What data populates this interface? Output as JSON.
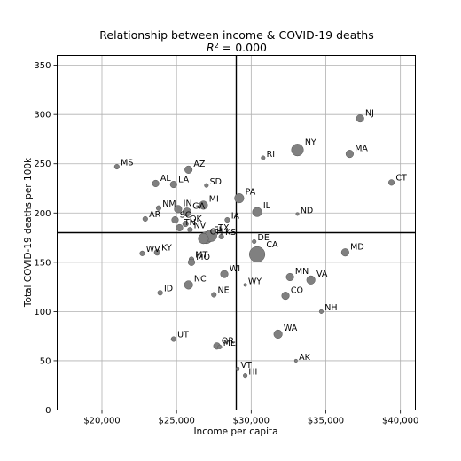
{
  "chart_data": {
    "type": "scatter",
    "title": "Relationship between income & COVID-19 deaths",
    "subtitle_math": "R",
    "subtitle_sup": "2",
    "subtitle_rest": " = 0.000",
    "xlabel": "Income per capita",
    "ylabel": "Total COVID-19 deaths per 100k",
    "xlim": [
      17000,
      41000
    ],
    "ylim": [
      0,
      360
    ],
    "x_ticks": [
      20000,
      25000,
      30000,
      35000,
      40000
    ],
    "x_tick_labels": [
      "$20,000",
      "$25,000",
      "$30,000",
      "$35,000",
      "$40,000"
    ],
    "y_ticks": [
      0,
      50,
      100,
      150,
      200,
      250,
      300,
      350
    ],
    "y_tick_labels": [
      "0",
      "50",
      "100",
      "150",
      "200",
      "250",
      "300",
      "350"
    ],
    "grid": true,
    "ref_x": 29000,
    "ref_y": 180,
    "marker_color": "#808080",
    "points": [
      {
        "label": "NJ",
        "x": 37300,
        "y": 296,
        "size": 7
      },
      {
        "label": "NY",
        "x": 33100,
        "y": 264,
        "size": 12
      },
      {
        "label": "MA",
        "x": 36600,
        "y": 260,
        "size": 7
      },
      {
        "label": "RI",
        "x": 30800,
        "y": 256,
        "size": 3
      },
      {
        "label": "MS",
        "x": 21000,
        "y": 247,
        "size": 4
      },
      {
        "label": "AZ",
        "x": 25800,
        "y": 244,
        "size": 7
      },
      {
        "label": "CT",
        "x": 39400,
        "y": 231,
        "size": 5
      },
      {
        "label": "AL",
        "x": 23600,
        "y": 230,
        "size": 6
      },
      {
        "label": "LA",
        "x": 24800,
        "y": 229,
        "size": 6
      },
      {
        "label": "SD",
        "x": 27000,
        "y": 228,
        "size": 3
      },
      {
        "label": "PA",
        "x": 29200,
        "y": 215,
        "size": 9
      },
      {
        "label": "MI",
        "x": 26800,
        "y": 208,
        "size": 8
      },
      {
        "label": "NM",
        "x": 23800,
        "y": 205,
        "size": 4
      },
      {
        "label": "IN",
        "x": 25100,
        "y": 204,
        "size": 7
      },
      {
        "label": "GA",
        "x": 25700,
        "y": 201,
        "size": 8
      },
      {
        "label": "IL",
        "x": 30400,
        "y": 201,
        "size": 9
      },
      {
        "label": "ND",
        "x": 33100,
        "y": 199,
        "size": 2
      },
      {
        "label": "AR",
        "x": 22900,
        "y": 194,
        "size": 4
      },
      {
        "label": "SC",
        "x": 24900,
        "y": 193,
        "size": 6
      },
      {
        "label": "IA",
        "x": 28400,
        "y": 193,
        "size": 4
      },
      {
        "label": "OK",
        "x": 25600,
        "y": 189,
        "size": 5
      },
      {
        "label": "TN",
        "x": 25200,
        "y": 185,
        "size": 6
      },
      {
        "label": "NV",
        "x": 25900,
        "y": 183,
        "size": 4
      },
      {
        "label": "FL",
        "x": 27000,
        "y": 175,
        "size": 12
      },
      {
        "label": "TX",
        "x": 27300,
        "y": 177,
        "size": 12
      },
      {
        "label": "OH",
        "x": 26800,
        "y": 174,
        "size": 10
      },
      {
        "label": "KS",
        "x": 28000,
        "y": 176,
        "size": 4
      },
      {
        "label": "DE",
        "x": 30200,
        "y": 171,
        "size": 3
      },
      {
        "label": "MD",
        "x": 36300,
        "y": 160,
        "size": 7
      },
      {
        "label": "CA",
        "x": 30400,
        "y": 158,
        "size": 16
      },
      {
        "label": "WV",
        "x": 22700,
        "y": 159,
        "size": 4
      },
      {
        "label": "KY",
        "x": 23700,
        "y": 160,
        "size": 5
      },
      {
        "label": "MT",
        "x": 26000,
        "y": 153,
        "size": 4
      },
      {
        "label": "MO",
        "x": 26000,
        "y": 150,
        "size": 6
      },
      {
        "label": "WI",
        "x": 28200,
        "y": 138,
        "size": 7
      },
      {
        "label": "MN",
        "x": 32600,
        "y": 135,
        "size": 7
      },
      {
        "label": "VA",
        "x": 34000,
        "y": 132,
        "size": 8
      },
      {
        "label": "NC",
        "x": 25800,
        "y": 127,
        "size": 8
      },
      {
        "label": "WY",
        "x": 29600,
        "y": 127,
        "size": 2
      },
      {
        "label": "ID",
        "x": 23900,
        "y": 119,
        "size": 4
      },
      {
        "label": "NE",
        "x": 27500,
        "y": 117,
        "size": 4
      },
      {
        "label": "CO",
        "x": 32300,
        "y": 116,
        "size": 7
      },
      {
        "label": "NH",
        "x": 34700,
        "y": 100,
        "size": 3
      },
      {
        "label": "WA",
        "x": 31800,
        "y": 77,
        "size": 8
      },
      {
        "label": "UT",
        "x": 24800,
        "y": 72,
        "size": 4
      },
      {
        "label": "OR",
        "x": 27700,
        "y": 65,
        "size": 6
      },
      {
        "label": "ME",
        "x": 27900,
        "y": 64,
        "size": 3
      },
      {
        "label": "AK",
        "x": 33000,
        "y": 50,
        "size": 2
      },
      {
        "label": "VT",
        "x": 29100,
        "y": 42,
        "size": 2
      },
      {
        "label": "HI",
        "x": 29600,
        "y": 35,
        "size": 3
      }
    ]
  }
}
